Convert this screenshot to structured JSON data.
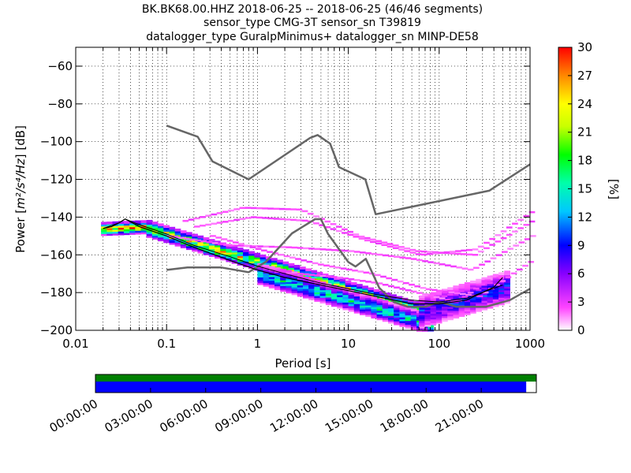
{
  "chart_data": {
    "type": "heatmap",
    "title_lines": [
      "BK.BK68.00.HHZ   2018-06-25 -- 2018-06-25  (46/46 segments)",
      "sensor_type CMG-3T sensor_sn T39819",
      "datalogger_type GuralpMinimus+ datalogger_sn MINP-DE58"
    ],
    "xlabel": "Period [s]",
    "ylabel_text": "Power [",
    "ylabel_math": "m²/s⁴/Hz",
    "ylabel_end": "] [dB]",
    "xscale": "log",
    "xlim": [
      0.01,
      1000
    ],
    "ylim": [
      -200,
      -50
    ],
    "xticks": [
      0.01,
      0.1,
      1,
      10,
      100,
      1000
    ],
    "xtick_labels": [
      "0.01",
      "0.1",
      "1",
      "10",
      "100",
      "1000"
    ],
    "yticks": [
      -200,
      -180,
      -160,
      -140,
      -120,
      -100,
      -80,
      -60
    ],
    "ytick_labels": [
      "−200",
      "−180",
      "−160",
      "−140",
      "−120",
      "−100",
      "−80",
      "−60"
    ],
    "grid": true,
    "colorbar": {
      "label": "[%]",
      "range": [
        0,
        30
      ],
      "ticks": [
        0,
        3,
        6,
        9,
        12,
        15,
        18,
        21,
        24,
        27,
        30
      ],
      "tick_labels": [
        "0",
        "3",
        "6",
        "9",
        "12",
        "15",
        "18",
        "21",
        "24",
        "27",
        "30"
      ]
    },
    "nhnm": {
      "periods": [
        0.1,
        0.22,
        0.32,
        0.8,
        3.8,
        4.6,
        6.3,
        7.9,
        15.4,
        20,
        354.8,
        1000
      ],
      "db": [
        -91.5,
        -97.4,
        -110.5,
        -120,
        -98,
        -96.5,
        -101,
        -113.5,
        -120,
        -138.5,
        -126,
        -112
      ]
    },
    "nlnm": {
      "periods": [
        0.1,
        0.17,
        0.4,
        0.8,
        1.24,
        2.4,
        4.3,
        5,
        6,
        10,
        12,
        15.6,
        21.9,
        31.6,
        45,
        70,
        101,
        154,
        328,
        600,
        1000
      ],
      "db": [
        -168,
        -166.7,
        -166.7,
        -169.2,
        -163.7,
        -148.6,
        -141.1,
        -141.1,
        -149,
        -163.8,
        -166.2,
        -162.1,
        -177.5,
        -185,
        -187.5,
        -187.5,
        -185,
        -187.5,
        -187.5,
        -184,
        -178
      ]
    },
    "mode": {
      "periods": [
        0.02,
        0.025,
        0.03,
        0.035,
        0.05,
        0.1,
        0.2,
        0.5,
        1,
        2,
        5,
        10,
        20,
        50,
        100,
        200,
        300,
        400,
        500
      ],
      "db": [
        -146,
        -145,
        -143,
        -141,
        -145,
        -150,
        -156,
        -163,
        -168,
        -172,
        -176,
        -179,
        -182,
        -186,
        -186,
        -184,
        -180,
        -177,
        -172
      ]
    },
    "mean": {
      "periods": [
        0.02,
        0.03,
        0.035,
        0.05,
        0.1,
        0.2,
        0.5,
        1,
        2,
        5,
        10,
        20,
        50,
        100,
        200,
        500
      ],
      "db": [
        -146,
        -143,
        -141,
        -144,
        -149,
        -155,
        -161,
        -166,
        -170,
        -175,
        -178,
        -181,
        -184,
        -185,
        -183,
        -176
      ]
    },
    "density_clusters": [
      {
        "comment": "narrow low-period band",
        "p_from": 0.019,
        "p_to": 0.06,
        "center_from": -146,
        "center_to": -145,
        "spread": 3,
        "peak_pct": 26
      },
      {
        "comment": "main trend",
        "p_from": 0.06,
        "p_to": 60,
        "center_from": -146,
        "center_to": -190,
        "spread": 4,
        "peak_pct": 22
      },
      {
        "comment": "lower spread",
        "p_from": 1,
        "p_to": 80,
        "center_from": -170,
        "center_to": -197,
        "spread": 5,
        "peak_pct": 14
      },
      {
        "comment": "high-period rise",
        "p_from": 60,
        "p_to": 600,
        "center_from": -190,
        "center_to": -176,
        "spread": 8,
        "peak_pct": 9
      }
    ],
    "low_density_lines": [
      {
        "p_from": 0.15,
        "p_to": 1000,
        "db": [
          -142,
          -135,
          -136,
          -150,
          -158,
          -160,
          -142
        ]
      },
      {
        "p_from": 0.2,
        "p_to": 1000,
        "db": [
          -145,
          -140,
          -142,
          -152,
          -160,
          -157,
          -137
        ]
      },
      {
        "p_from": 0.1,
        "p_to": 1000,
        "db": [
          -150,
          -155,
          -156,
          -158,
          -162,
          -168,
          -150
        ]
      },
      {
        "p_from": 0.3,
        "p_to": 1000,
        "db": [
          -150,
          -158,
          -165,
          -170,
          -178,
          -182,
          -163
        ]
      },
      {
        "p_from": 1,
        "p_to": 400,
        "db": [
          -165,
          -170,
          -172,
          -175,
          -180,
          -185,
          -170
        ]
      }
    ],
    "data_availability": {
      "time_ticks": [
        "00:00:00",
        "03:00:00",
        "06:00:00",
        "09:00:00",
        "12:00:00",
        "15:00:00",
        "18:00:00",
        "21:00:00"
      ],
      "total_hours": 24,
      "data_coverage_fraction": 1.0,
      "gap_free_fraction": 0.977,
      "colors": {
        "data": "#008000",
        "segments": "#0000ff",
        "gap": "#ffffff"
      }
    }
  }
}
